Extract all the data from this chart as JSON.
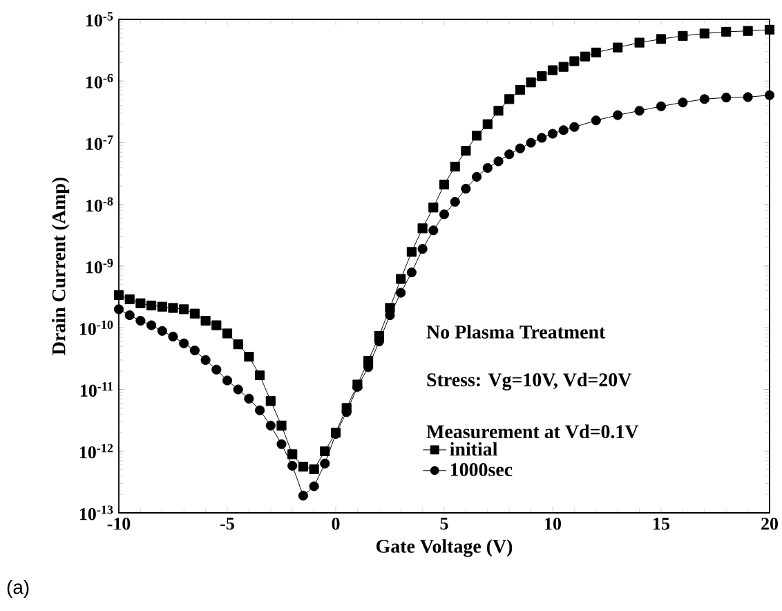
{
  "chart_data": {
    "type": "line",
    "xlabel": "Gate Voltage (V)",
    "ylabel": "Drain Current (Amp)",
    "log": "y",
    "legend": "bottom right",
    "line_style": "solid",
    "xlim": [
      -10,
      20
    ],
    "xticks": [
      -10,
      -5,
      0,
      5,
      10,
      15,
      20
    ],
    "ylim": [
      1e-13,
      1e-05
    ],
    "yticks": [
      {
        "value": 1e-13,
        "label": "10$^{-13}$"
      },
      {
        "value": 1e-12,
        "label": "10$^{-12}$"
      },
      {
        "value": 1e-11,
        "label": "10$^{-11}$"
      },
      {
        "value": 1e-10,
        "label": "10$^{-10}$"
      },
      {
        "value": 1e-09,
        "label": "10$^{-9}$"
      },
      {
        "value": 1e-08,
        "label": "10$^{-8}$"
      },
      {
        "value": 1e-07,
        "label": "10$^{-7}$"
      },
      {
        "value": 1e-06,
        "label": "10$^{-6}$"
      },
      {
        "value": 1e-05,
        "label": "10$^{-5}$"
      }
    ],
    "annotations": [
      "No Plasma Treatment",
      "Stress: Vg=10V, Vd=20V",
      "Measurement at Vd=0.1V",
      "(a)"
    ],
    "series": [
      {
        "name": "initial",
        "color": "#000000",
        "marker": "square",
        "x": [
          -10,
          -9.5,
          -9,
          -8.5,
          -8,
          -7.5,
          -7,
          -6.5,
          -6,
          -5.5,
          -5,
          -4.5,
          -4,
          -3.5,
          -3,
          -2.5,
          -2,
          -1.5,
          -1,
          -0.5,
          0,
          0.5,
          1,
          1.5,
          2,
          2.5,
          3,
          3.5,
          4,
          4.5,
          5,
          5.5,
          6,
          6.5,
          7,
          7.5,
          8,
          8.5,
          9,
          9.5,
          10,
          10.5,
          11,
          11.5,
          12,
          13,
          14,
          15,
          16,
          17,
          18,
          19,
          20
        ],
        "values": [
          3.4e-10,
          2.9e-10,
          2.5e-10,
          2.3e-10,
          2.2e-10,
          2.1e-10,
          2e-10,
          1.7e-10,
          1.3e-10,
          1.1e-10,
          8.1e-11,
          5.4e-11,
          3.4e-11,
          1.7e-11,
          6.5e-12,
          2.6e-12,
          8.9e-13,
          5.6e-13,
          5.1e-13,
          1e-12,
          2e-12,
          5e-12,
          1.2e-11,
          2.9e-11,
          7.4e-11,
          2.1e-10,
          6.2e-10,
          1.7e-09,
          4.1e-09,
          8.9e-09,
          2.1e-08,
          4.1e-08,
          7.4e-08,
          1.3e-07,
          2e-07,
          3.3e-07,
          5.1e-07,
          7.2e-07,
          9.5e-07,
          1.2e-06,
          1.5e-06,
          1.7e-06,
          2.1e-06,
          2.5e-06,
          2.9e-06,
          3.5e-06,
          4.2e-06,
          4.8e-06,
          5.4e-06,
          5.9e-06,
          6.3e-06,
          6.5e-06,
          6.8e-06
        ]
      },
      {
        "name": "1000sec",
        "color": "#000000",
        "marker": "circle",
        "x": [
          -10,
          -9.5,
          -9,
          -8.5,
          -8,
          -7.5,
          -7,
          -6.5,
          -6,
          -5.5,
          -5,
          -4.5,
          -4,
          -3.5,
          -3,
          -2.5,
          -2,
          -1.5,
          -1,
          -0.5,
          0,
          0.5,
          1,
          1.5,
          2,
          2.5,
          3,
          3.5,
          4,
          4.5,
          5,
          5.5,
          6,
          6.5,
          7,
          7.5,
          8,
          8.5,
          9,
          9.5,
          10,
          10.5,
          11,
          12,
          13,
          14,
          15,
          16,
          17,
          18,
          19,
          20
        ],
        "values": [
          2e-10,
          1.6e-10,
          1.3e-10,
          1.1e-10,
          8.9e-11,
          7.2e-11,
          5.6e-11,
          4.3e-11,
          3e-11,
          2.1e-11,
          1.4e-11,
          1e-11,
          7.1e-12,
          4.6e-12,
          2.6e-12,
          1.3e-12,
          5.8e-13,
          1.9e-13,
          2.7e-13,
          6.3e-13,
          1.9e-12,
          4.3e-12,
          1.1e-11,
          2.3e-11,
          6e-11,
          1.6e-10,
          3.7e-10,
          7.9e-10,
          1.9e-09,
          3.8e-09,
          6.9e-09,
          1.1e-08,
          1.8e-08,
          2.8e-08,
          3.9e-08,
          5e-08,
          6.5e-08,
          8.1e-08,
          1e-07,
          1.2e-07,
          1.4e-07,
          1.6e-07,
          1.8e-07,
          2.3e-07,
          2.8e-07,
          3.3e-07,
          3.9e-07,
          4.5e-07,
          5.1e-07,
          5.4e-07,
          5.5e-07,
          5.9e-07
        ]
      }
    ]
  }
}
